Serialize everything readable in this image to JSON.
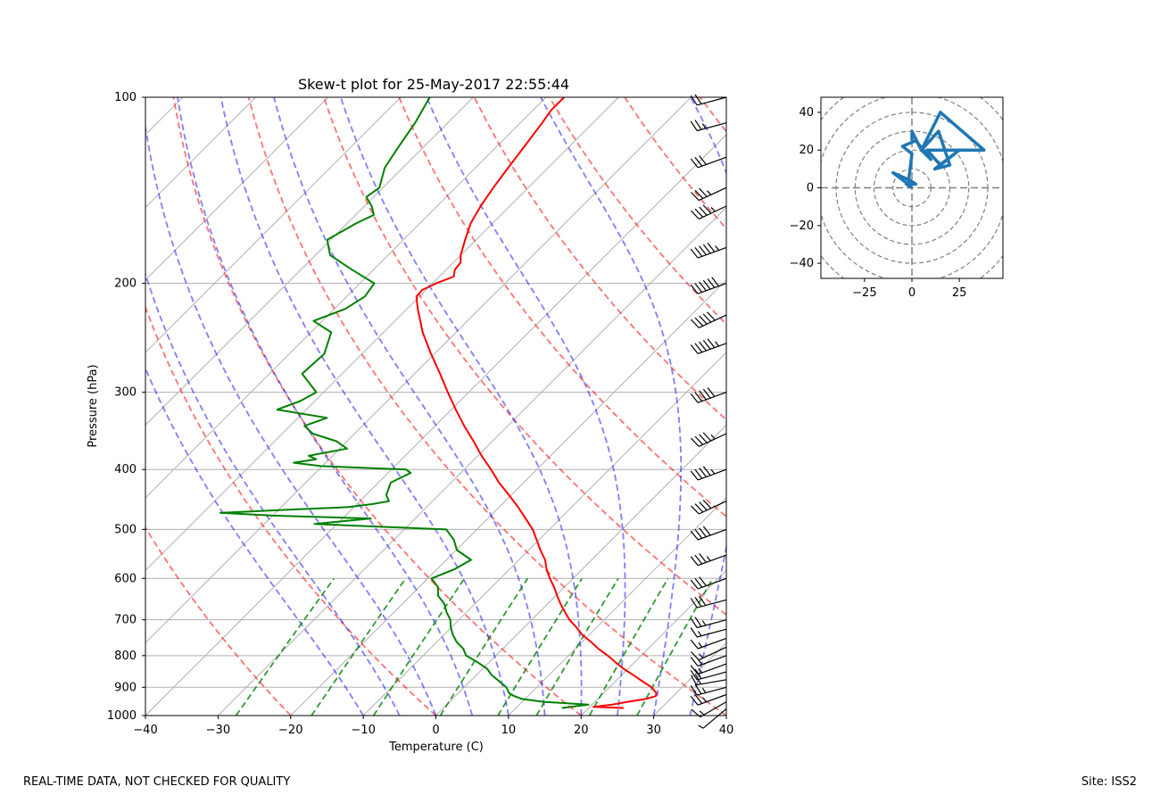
{
  "footer": {
    "disclaimer": "REAL-TIME DATA, NOT CHECKED FOR QUALITY",
    "site": "Site: ISS2"
  },
  "colors": {
    "temperature": "#ff0000",
    "dewpoint": "#008000",
    "dry_adiabat": "#ff0000",
    "moist_adiabat": "#0000ff",
    "mixing_ratio": "#008000",
    "hodograph": "#1f77b4",
    "grid": "#b0b0b0"
  },
  "chart_data": [
    {
      "type": "skew-t",
      "title": "Skew-t plot for 25-May-2017 22:55:44",
      "xlabel": "Temperature (C)",
      "ylabel": "Pressure (hPa)",
      "xlim": [
        -40,
        40
      ],
      "ylim": [
        1000,
        100
      ],
      "xticks": [
        -40,
        -30,
        -20,
        -10,
        0,
        10,
        20,
        30,
        40
      ],
      "yticks": [
        1000,
        900,
        800,
        700,
        600,
        500,
        400,
        300,
        200,
        100
      ],
      "temperature_profile": {
        "name": "Temperature",
        "p": [
          972,
          968,
          960,
          950,
          940,
          930,
          920,
          900,
          880,
          860,
          840,
          820,
          800,
          780,
          760,
          740,
          720,
          700,
          680,
          660,
          640,
          620,
          600,
          580,
          560,
          540,
          520,
          500,
          480,
          460,
          440,
          420,
          400,
          380,
          360,
          340,
          320,
          300,
          280,
          260,
          240,
          220,
          210,
          205,
          200,
          195,
          190,
          185,
          180,
          170,
          160,
          150,
          140,
          130,
          120,
          110,
          105,
          100
        ],
        "t": [
          24.8,
          20.5,
          22.8,
          24.5,
          26.6,
          27.6,
          27.3,
          25.8,
          23.7,
          21.6,
          19.4,
          17.4,
          15.4,
          13.2,
          11.2,
          9.0,
          7.2,
          5.2,
          3.5,
          1.8,
          0.2,
          -1.4,
          -3.2,
          -4.9,
          -6.4,
          -8.4,
          -10.3,
          -12.3,
          -14.8,
          -17.4,
          -20.3,
          -23.4,
          -26.3,
          -29.5,
          -32.6,
          -36.0,
          -39.4,
          -42.9,
          -46.5,
          -50.5,
          -54.6,
          -58.5,
          -60.4,
          -60.5,
          -59.5,
          -58.0,
          -58.8,
          -59.0,
          -60.0,
          -61.5,
          -63.0,
          -64.0,
          -64.8,
          -65.5,
          -66.2,
          -67.0,
          -67.5,
          -67.5
        ]
      },
      "dewpoint_profile": {
        "name": "Dewpoint",
        "p": [
          972,
          960,
          950,
          940,
          930,
          920,
          900,
          880,
          860,
          840,
          820,
          800,
          780,
          760,
          740,
          720,
          700,
          680,
          660,
          640,
          620,
          600,
          580,
          560,
          540,
          520,
          500,
          490,
          480,
          475,
          470,
          465,
          460,
          455,
          450,
          440,
          420,
          405,
          400,
          395,
          390,
          385,
          380,
          370,
          360,
          350,
          340,
          330,
          320,
          310,
          300,
          280,
          260,
          240,
          230,
          220,
          210,
          200,
          190,
          180,
          170,
          160,
          155,
          150,
          145,
          140,
          130,
          120,
          110,
          100
        ],
        "td": [
          16.3,
          19.5,
          12.9,
          9.6,
          8.1,
          7.0,
          5.8,
          4.0,
          2.1,
          0.6,
          -1.6,
          -4.1,
          -5.4,
          -7.3,
          -8.8,
          -10.1,
          -11.2,
          -12.8,
          -14.2,
          -16.2,
          -17.4,
          -19.5,
          -17.6,
          -16.6,
          -19.9,
          -21.7,
          -24.2,
          -43.1,
          -36.1,
          -50.0,
          -57.6,
          -49.3,
          -40.7,
          -37.9,
          -36.0,
          -37.2,
          -38.3,
          -36.9,
          -38.0,
          -50.2,
          -54.4,
          -51.8,
          -53.3,
          -49.0,
          -51.5,
          -55.8,
          -58.0,
          -56.0,
          -64.0,
          -62.0,
          -61.0,
          -65.5,
          -65.2,
          -67.2,
          -71.2,
          -68.5,
          -67.5,
          -68.0,
          -73.0,
          -78.0,
          -80.5,
          -78.8,
          -77.5,
          -79.0,
          -81.0,
          -80.5,
          -82.5,
          -83.5,
          -84.5,
          -86.0
        ]
      },
      "dry_adiabats_theta_c": [
        -20,
        0,
        20,
        40,
        60,
        80,
        100,
        120,
        140,
        160
      ],
      "moist_adiabats_thetaw_c": [
        -10,
        -5,
        0,
        5,
        10,
        15,
        20,
        25,
        30,
        35,
        40
      ],
      "mixing_ratio_lines_gkg": [
        0.4,
        1,
        2,
        4,
        7,
        10,
        16,
        24
      ],
      "wind_barbs": {
        "units": "knots",
        "p": [
          975,
          950,
          925,
          900,
          875,
          850,
          825,
          800,
          775,
          750,
          725,
          700,
          650,
          600,
          550,
          500,
          450,
          400,
          350,
          300,
          250,
          225,
          200,
          175,
          150,
          140,
          125,
          110,
          100
        ],
        "speed": [
          5,
          15,
          25,
          25,
          20,
          20,
          15,
          15,
          15,
          15,
          15,
          25,
          30,
          30,
          35,
          40,
          40,
          45,
          45,
          50,
          55,
          50,
          60,
          55,
          45,
          35,
          30,
          25,
          20
        ],
        "direction": [
          230,
          240,
          250,
          255,
          260,
          255,
          250,
          250,
          245,
          250,
          255,
          255,
          255,
          250,
          250,
          250,
          245,
          250,
          245,
          250,
          250,
          245,
          250,
          250,
          245,
          245,
          250,
          255,
          255
        ]
      }
    },
    {
      "type": "hodograph",
      "xlim": [
        -48,
        48
      ],
      "ylim": [
        -48,
        48
      ],
      "xticks": [
        -25,
        0,
        25
      ],
      "yticks": [
        -40,
        -20,
        0,
        20,
        40
      ],
      "rings": [
        10,
        20,
        30,
        40,
        50,
        60
      ],
      "u": [
        0,
        -3,
        2,
        -1,
        -10,
        -2,
        0,
        -5,
        2,
        10,
        5,
        14,
        20,
        12,
        25,
        15,
        8,
        38,
        15,
        5,
        0,
        0
      ],
      "v": [
        0,
        2,
        2,
        4,
        8,
        2,
        18,
        22,
        25,
        15,
        20,
        30,
        12,
        10,
        20,
        12,
        20,
        20,
        40,
        20,
        30,
        25
      ]
    }
  ]
}
